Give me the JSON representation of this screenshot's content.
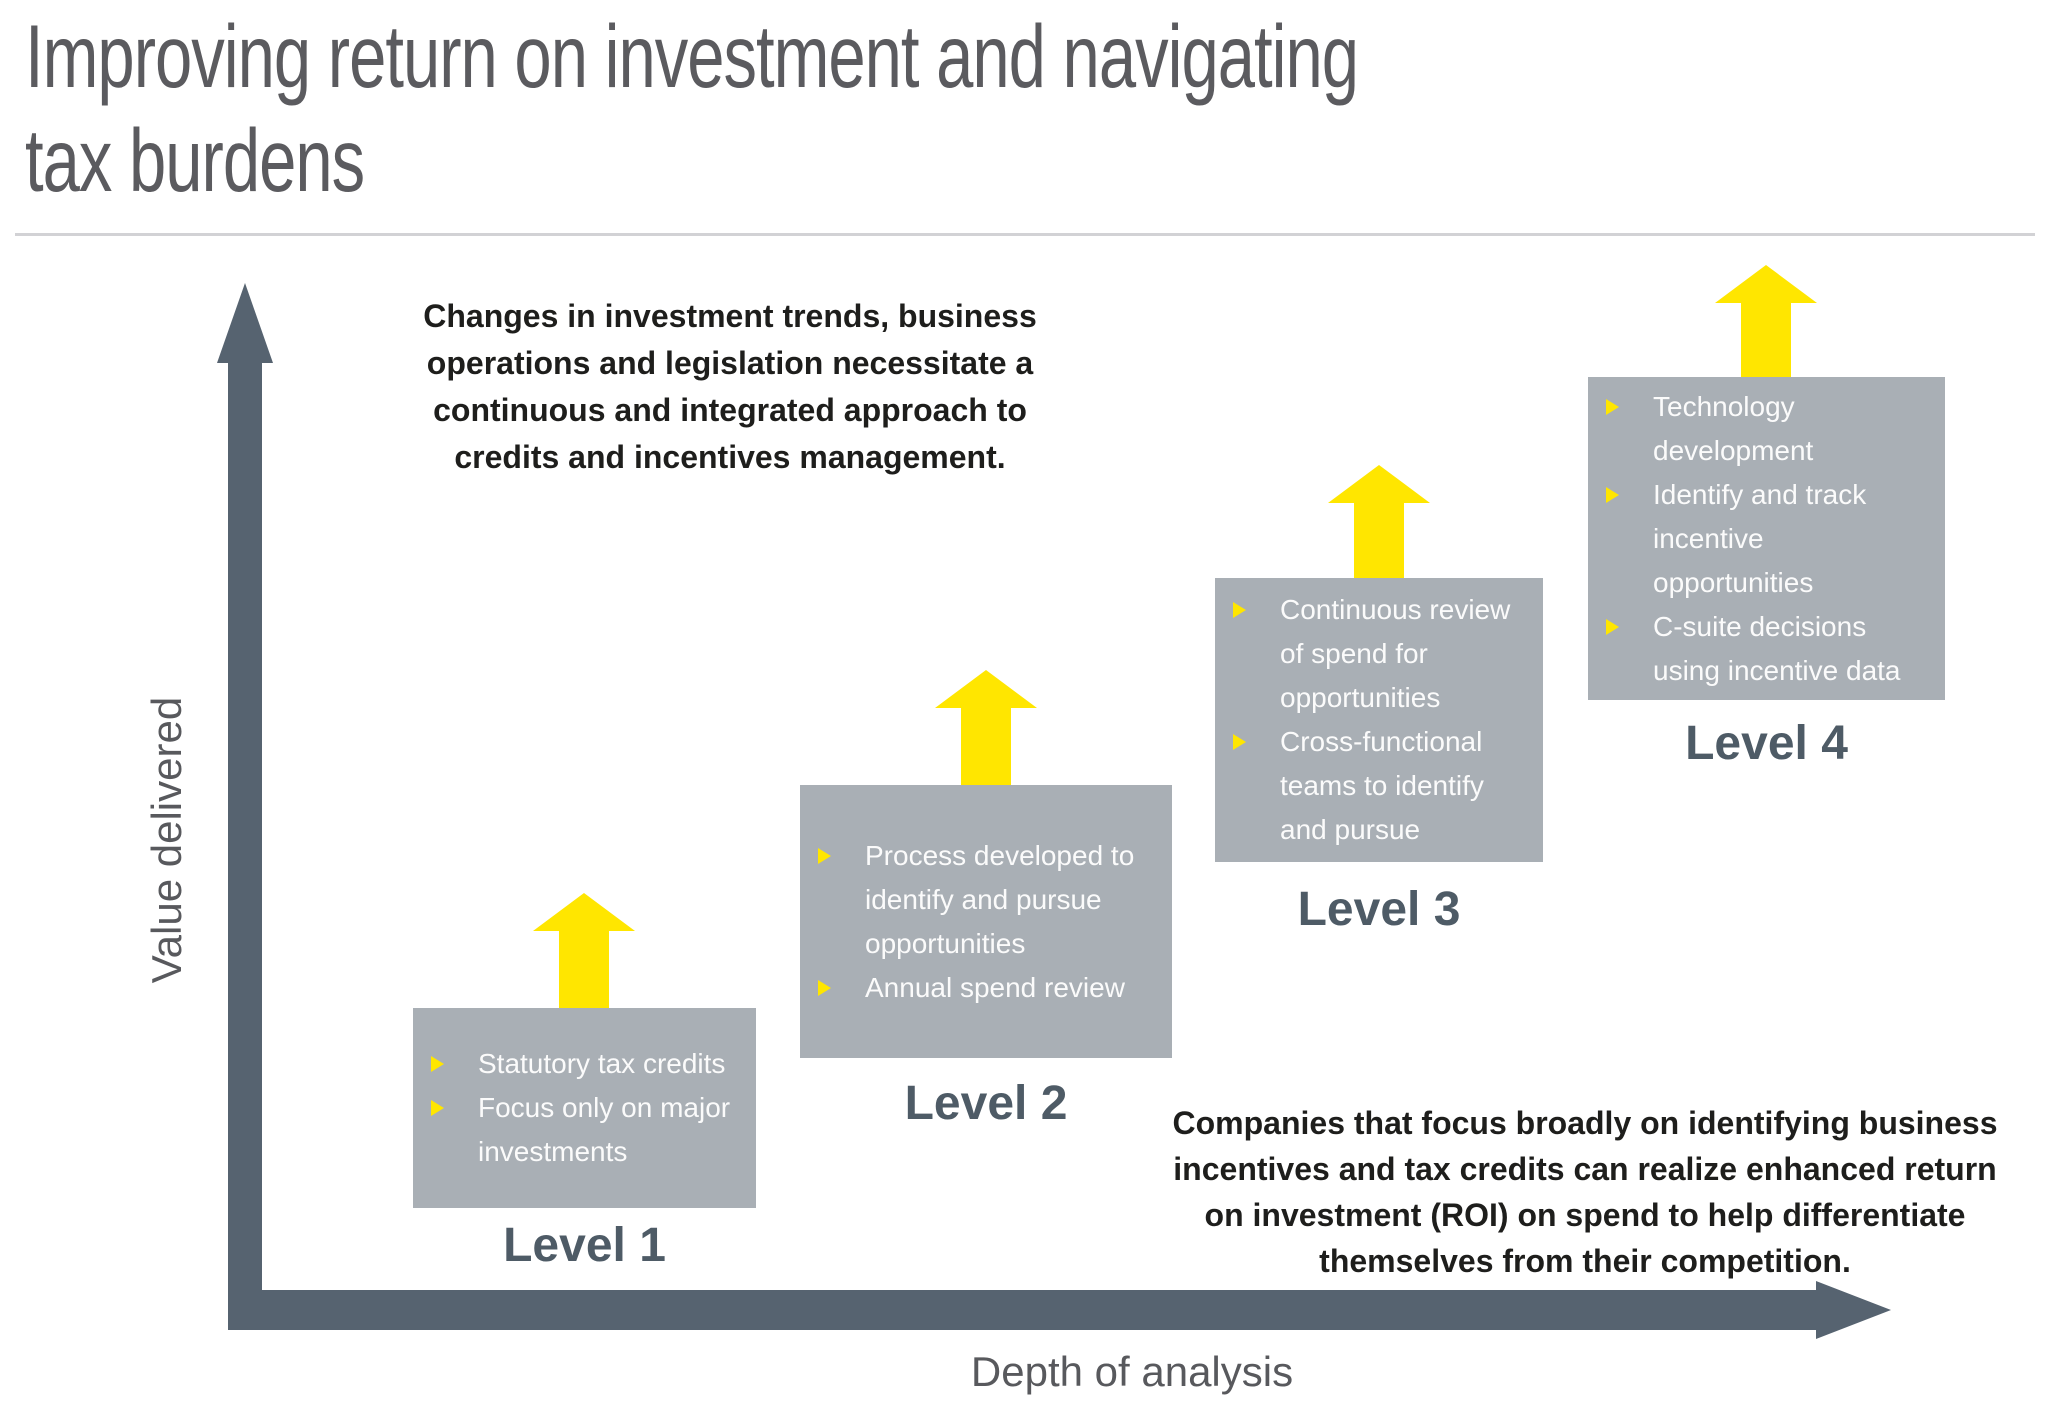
{
  "title": {
    "lines": [
      "Improving return on investment and navigating",
      "tax burdens"
    ]
  },
  "intro_note": {
    "lines": [
      "Changes in investment trends, business",
      "operations and legislation necessitate a",
      "continuous and integrated approach to",
      "credits and incentives management."
    ]
  },
  "outro_note": {
    "lines": [
      "Companies that focus broadly on identifying business",
      "incentives and tax credits can realize enhanced return",
      "on investment (ROI) on spend to help differentiate",
      "themselves from their competition."
    ]
  },
  "axes": {
    "y_label": "Value delivered",
    "x_label": "Depth of analysis"
  },
  "levels": [
    {
      "label": "Level 1",
      "bullets": [
        "Statutory tax credits",
        "Focus only on major investments"
      ]
    },
    {
      "label": "Level 2",
      "bullets": [
        "Process developed to identify and pursue opportunities",
        "Annual spend review"
      ]
    },
    {
      "label": "Level 3",
      "bullets": [
        "Continuous review of spend for opportunities",
        "Cross-functional teams to identify and pursue"
      ]
    },
    {
      "label": "Level 4",
      "bullets": [
        "Technology development",
        "Identify and track incentive opportunities",
        "C-suite decisions using incentive data"
      ]
    }
  ],
  "colors": {
    "accent_yellow": "#ffe600",
    "axis_slate": "#566370",
    "box_gray": "#a9afb5",
    "title_gray": "#5b5b5f",
    "level_label_slate": "#4e5b66",
    "body_text": "#1e1e1c",
    "divider_gray": "#d2d2d5",
    "bullet_text_white": "#fbfbfb"
  }
}
